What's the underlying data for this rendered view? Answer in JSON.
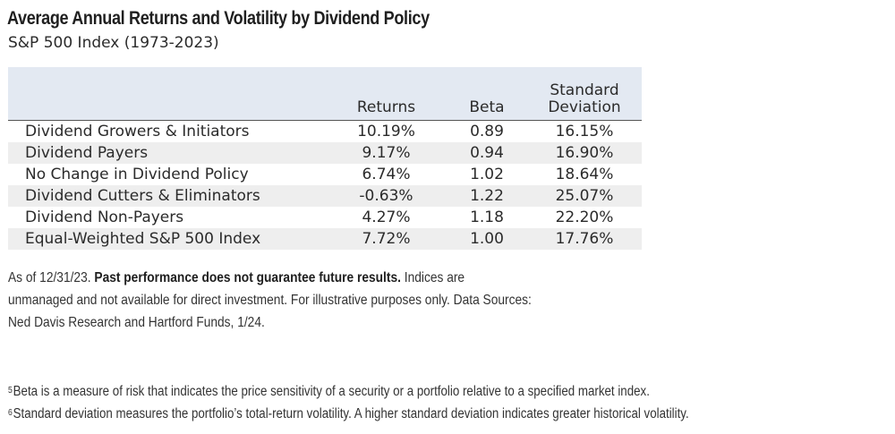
{
  "chart_data": {
    "type": "table",
    "title": "Average Annual Returns and Volatility by Dividend Policy",
    "subtitle": "S&P 500 Index (1973-2023)",
    "columns": [
      "",
      "Returns",
      "Beta",
      "Standard Deviation"
    ],
    "column_header_lines": {
      "standard_deviation": [
        "Standard",
        "Deviation"
      ]
    },
    "rows": [
      {
        "label": "Dividend Growers & Initiators",
        "returns": "10.19%",
        "beta": "0.89",
        "std_dev": "16.15%"
      },
      {
        "label": "Dividend Payers",
        "returns": "9.17%",
        "beta": "0.94",
        "std_dev": "16.90%"
      },
      {
        "label": "No Change in Dividend Policy",
        "returns": "6.74%",
        "beta": "1.02",
        "std_dev": "18.64%"
      },
      {
        "label": "Dividend Cutters & Eliminators",
        "returns": "-0.63%",
        "beta": "1.22",
        "std_dev": "25.07%"
      },
      {
        "label": "Dividend Non-Payers",
        "returns": "4.27%",
        "beta": "1.18",
        "std_dev": "22.20%"
      },
      {
        "label": "Equal-Weighted S&P 500 Index",
        "returns": "7.72%",
        "beta": "1.00",
        "std_dev": "17.76%"
      }
    ]
  },
  "source_note": {
    "lines": [
      {
        "pre": "As of 12/31/23. ",
        "bold": "Past performance does not guarantee future results.",
        "post": " Indices are"
      },
      {
        "pre": "unmanaged and not available for direct investment. For illustrative purposes only. Data Sources:",
        "bold": "",
        "post": ""
      },
      {
        "pre": "Ned Davis Research and Hartford Funds, 1/24.",
        "bold": "",
        "post": ""
      }
    ]
  },
  "footnotes": [
    {
      "marker": "5",
      "text": "Beta is a measure of risk that indicates the price sensitivity of a security or a portfolio relative to a specified market index."
    },
    {
      "marker": "6",
      "text": "Standard deviation measures the portfolio’s total-return volatility. A higher standard deviation indicates greater historical volatility."
    }
  ]
}
